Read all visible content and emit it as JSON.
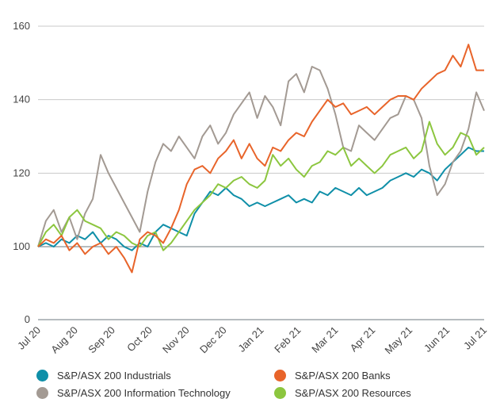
{
  "chart_data": {
    "type": "line",
    "x_labels": [
      "Jul 20",
      "Aug 20",
      "Sep 20",
      "Oct 20",
      "Nov 20",
      "Dec 20",
      "Jan 21",
      "Feb 21",
      "Mar 21",
      "Apr 21",
      "May 21",
      "Jun 21",
      "Jul 21"
    ],
    "y_ticks": [
      "0",
      "100",
      "120",
      "140",
      "160"
    ],
    "ylim": [
      0,
      160
    ],
    "y_axis_break": true,
    "grid": true,
    "legend_position": "bottom",
    "series": [
      {
        "name": "S&P/ASX 200 Industrials",
        "color": "#0f8fa8",
        "values": [
          100,
          101,
          100,
          102,
          101,
          103,
          102,
          104,
          101,
          103,
          102,
          100,
          99,
          101,
          100,
          104,
          106,
          105,
          104,
          103,
          109,
          112,
          115,
          114,
          116,
          114,
          113,
          111,
          112,
          111,
          112,
          113,
          114,
          112,
          113,
          112,
          115,
          114,
          116,
          115,
          114,
          116,
          114,
          115,
          116,
          118,
          119,
          120,
          119,
          121,
          120,
          118,
          121,
          123,
          125,
          127,
          126,
          126
        ]
      },
      {
        "name": "S&P/ASX 200 Information Technology",
        "color": "#a39a93",
        "values": [
          100,
          107,
          110,
          104,
          108,
          102,
          109,
          113,
          125,
          120,
          116,
          112,
          108,
          104,
          115,
          123,
          128,
          126,
          130,
          127,
          124,
          130,
          133,
          128,
          131,
          136,
          139,
          142,
          135,
          141,
          138,
          133,
          145,
          147,
          142,
          149,
          148,
          143,
          136,
          127,
          126,
          133,
          131,
          129,
          132,
          135,
          136,
          141,
          140,
          135,
          122,
          114,
          117,
          123,
          126,
          132,
          142,
          137
        ]
      },
      {
        "name": "S&P/ASX 200 Banks",
        "color": "#e8642a",
        "values": [
          100,
          102,
          101,
          103,
          99,
          101,
          98,
          100,
          101,
          98,
          100,
          97,
          93,
          102,
          104,
          103,
          101,
          105,
          110,
          117,
          121,
          122,
          120,
          124,
          126,
          129,
          124,
          128,
          124,
          122,
          127,
          126,
          129,
          131,
          130,
          134,
          137,
          140,
          138,
          139,
          136,
          137,
          138,
          136,
          138,
          140,
          141,
          141,
          140,
          143,
          145,
          147,
          148,
          152,
          149,
          155,
          148,
          148
        ]
      },
      {
        "name": "S&P/ASX 200 Resources",
        "color": "#8cc63f",
        "values": [
          100,
          104,
          106,
          103,
          108,
          110,
          107,
          106,
          105,
          102,
          104,
          103,
          101,
          100,
          103,
          104,
          99,
          101,
          104,
          107,
          110,
          112,
          114,
          117,
          116,
          118,
          119,
          117,
          116,
          118,
          125,
          122,
          124,
          121,
          119,
          122,
          123,
          126,
          125,
          127,
          122,
          124,
          122,
          120,
          122,
          125,
          126,
          127,
          124,
          126,
          134,
          128,
          125,
          127,
          131,
          130,
          125,
          127
        ]
      }
    ]
  }
}
